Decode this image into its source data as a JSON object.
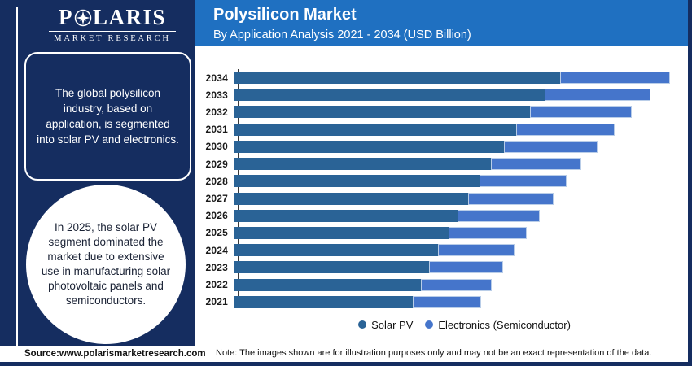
{
  "brand": {
    "logo_prefix": "P",
    "logo_suffix": "LARIS",
    "logo_subtext": "MARKET RESEARCH"
  },
  "header": {
    "title": "Polysilicon Market",
    "subtitle": "By Application Analysis 2021 - 2034 (USD Billion)"
  },
  "sidebar": {
    "box_text": "The global polysilicon industry, based on application, is segmented into solar PV and electronics.",
    "circle_text": "In 2025, the solar PV segment dominated the market due to extensive use in manufacturing solar photovoltaic panels and semiconductors."
  },
  "footer": {
    "source": "Source:www.polarismarketresearch.com",
    "note": "Note: The images shown are for illustration purposes only and may not be an exact representation of the data."
  },
  "colors": {
    "background_navy": "#152d60",
    "header_blue": "#1f70c1",
    "solar_pv": "#2a6396",
    "electronics": "#4575cb",
    "electronics_border": "#b9cde8",
    "panel_white": "#ffffff"
  },
  "chart_data": {
    "type": "bar",
    "orientation": "horizontal",
    "stacked": true,
    "title": "Polysilicon Market",
    "subtitle": "By Application Analysis 2021 - 2034 (USD Billion)",
    "value_axis": "none shown (no numeric ticks); values are relative estimates from bar lengths, scaled so 2034 total = 100",
    "legend_position": "bottom",
    "grid": false,
    "categories": [
      "2034",
      "2033",
      "2032",
      "2031",
      "2030",
      "2029",
      "2028",
      "2027",
      "2026",
      "2025",
      "2024",
      "2023",
      "2022",
      "2021"
    ],
    "series": [
      {
        "name": "Solar PV",
        "color": "#2a6396",
        "values": [
          74.8,
          71.3,
          67.9,
          64.7,
          61.9,
          59.0,
          56.3,
          53.7,
          51.3,
          49.3,
          46.8,
          44.8,
          42.9,
          41.0
        ]
      },
      {
        "name": "Electronics (Semiconductor)",
        "color": "#4575cb",
        "values": [
          25.2,
          24.3,
          23.3,
          22.6,
          21.5,
          20.7,
          20.0,
          19.6,
          18.8,
          17.9,
          17.5,
          17.0,
          16.2,
          15.7
        ]
      }
    ]
  }
}
